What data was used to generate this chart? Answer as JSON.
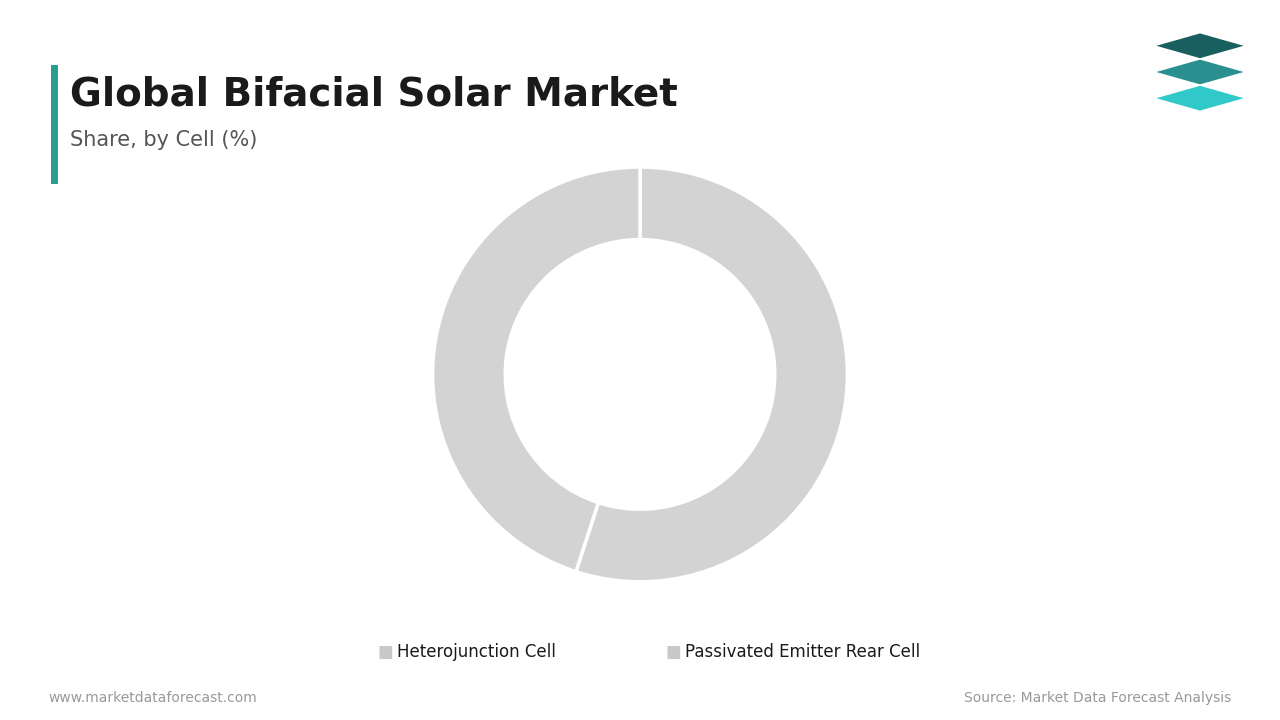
{
  "title": "Global Bifacial Solar Market",
  "subtitle": "Share, by Cell (%)",
  "slices": [
    {
      "label": "Heterojunction Cell",
      "value": 55,
      "color": "#d3d3d3"
    },
    {
      "label": "Passivated Emitter Rear Cell",
      "value": 45,
      "color": "#d3d3d3"
    }
  ],
  "donut_width": 0.35,
  "wedge_edge_color": "#ffffff",
  "wedge_linewidth": 2.5,
  "background_color": "#ffffff",
  "title_color": "#1a1a1a",
  "subtitle_color": "#555555",
  "title_fontsize": 28,
  "subtitle_fontsize": 15,
  "legend_fontsize": 12,
  "footer_left": "www.marketdataforecast.com",
  "footer_right": "Source: Market Data Forecast Analysis",
  "footer_fontsize": 10,
  "footer_color": "#999999",
  "accent_bar_color": "#2a9d8f",
  "logo_colors": [
    "#1a5f5f",
    "#2a8f8f",
    "#30c8c8"
  ],
  "legend_square_color": "#c8c8c8"
}
